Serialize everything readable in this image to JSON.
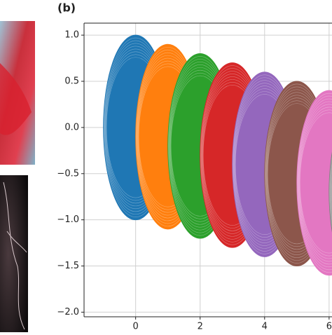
{
  "panel_label": "(b)",
  "chart_data": {
    "type": "ellipse",
    "centers_x": [
      0,
      1,
      2,
      3,
      4,
      5,
      6,
      7
    ],
    "centers_y": [
      0,
      -0.1,
      -0.2,
      -0.3,
      -0.4,
      -0.5,
      -0.6,
      -0.7
    ],
    "radius_x": 1,
    "radius_y": 1,
    "colors": [
      "#1f77b4",
      "#ff7f0e",
      "#2ca02c",
      "#d62728",
      "#9467bd",
      "#8c564b",
      "#e377c2",
      "#7f7f7f"
    ],
    "xlim": [
      -1.6,
      6.09
    ],
    "ylim": [
      -2.05,
      1.13
    ],
    "xticks": [
      0,
      2,
      4,
      6
    ],
    "yticks": [
      {
        "value": 1,
        "label": "1.0"
      },
      0.5,
      {
        "value": 0,
        "label": "0.0"
      },
      {
        "value": -0.5,
        "label": "−0.5"
      },
      {
        "value": -1,
        "label": "−1.0"
      },
      {
        "value": -1.5,
        "label": "−1.5"
      },
      {
        "value": -2,
        "label": "−2.0"
      }
    ],
    "grid": true
  }
}
